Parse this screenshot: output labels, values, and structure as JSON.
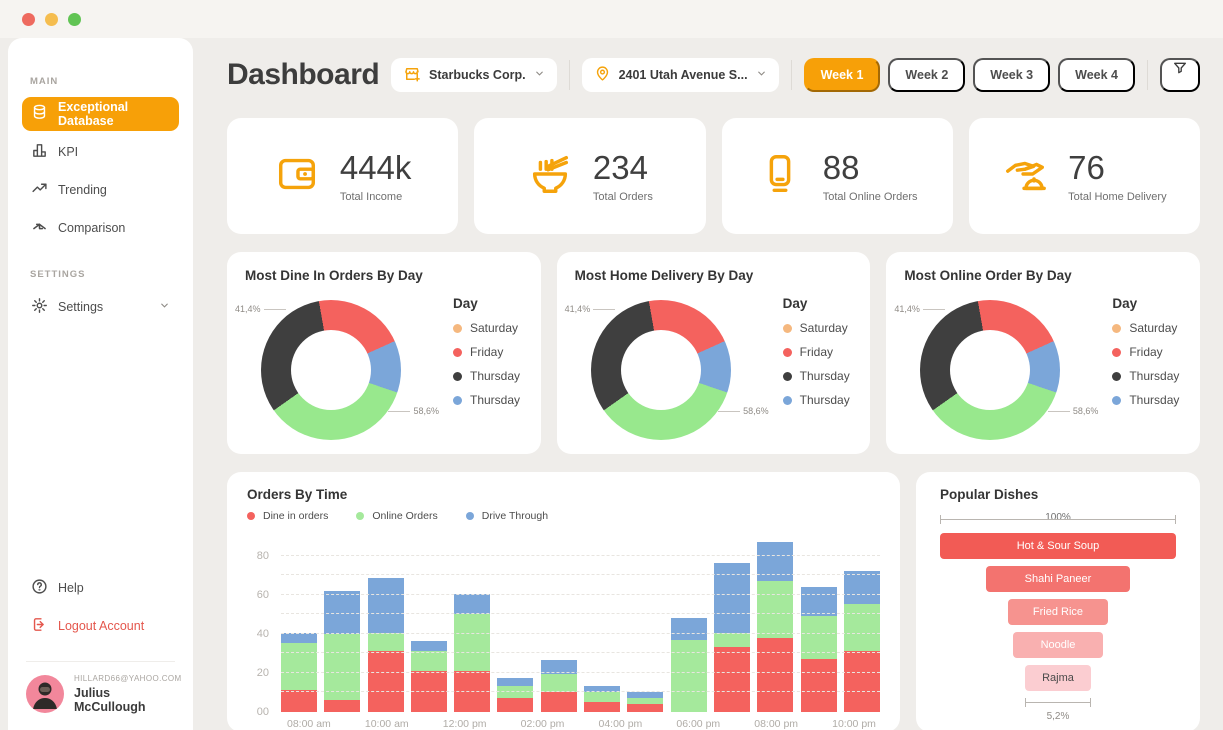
{
  "window": {
    "traffic_lights": [
      {
        "name": "close",
        "color": "#ee6a5f"
      },
      {
        "name": "minimize",
        "color": "#f5bd4f"
      },
      {
        "name": "maximize",
        "color": "#61c454"
      }
    ]
  },
  "sidebar": {
    "main_label": "MAIN",
    "items": [
      {
        "label": "Exceptional Database",
        "icon": "database-icon",
        "active": true
      },
      {
        "label": "KPI",
        "icon": "bar-chart-icon",
        "active": false
      },
      {
        "label": "Trending",
        "icon": "trending-icon",
        "active": false
      },
      {
        "label": "Comparison",
        "icon": "comparison-icon",
        "active": false
      }
    ],
    "settings_label": "SETTINGS",
    "settings_item": {
      "label": "Settings",
      "icon": "gear-icon"
    },
    "help_label": "Help",
    "logout_label": "Logout Account",
    "user": {
      "email": "HILLARD66@YAHOO.COM",
      "name": "Julius McCullough"
    }
  },
  "header": {
    "title": "Dashboard",
    "company_select": {
      "label": "Starbucks Corp.",
      "icon": "store-icon"
    },
    "location_select": {
      "label": "2401 Utah Avenue S...",
      "icon": "location-pin-icon"
    },
    "weeks": [
      "Week 1",
      "Week 2",
      "Week 3",
      "Week 4"
    ],
    "active_week": 0,
    "accent_color": "#f7a008"
  },
  "kpis": [
    {
      "icon": "wallet-icon",
      "value": "444k",
      "label": "Total Income"
    },
    {
      "icon": "noodle-bowl-icon",
      "value": "234",
      "label": "Total Orders"
    },
    {
      "icon": "phone-icon",
      "value": "88",
      "label": "Total Online Orders"
    },
    {
      "icon": "hand-dish-icon",
      "value": "76",
      "label": "Total Home Delivery"
    }
  ],
  "donut_cards": [
    {
      "title": "Most Dine In Orders By Day"
    },
    {
      "title": "Most Home Delivery By Day"
    },
    {
      "title": "Most Online Order By Day"
    }
  ],
  "donut_chart": {
    "type": "pie",
    "labels": {
      "left": "41,4%",
      "right": "58,6%"
    },
    "legend_title": "Day",
    "legend": [
      {
        "label": "Saturday",
        "color": "#f5b87f"
      },
      {
        "label": "Friday",
        "color": "#f4625e"
      },
      {
        "label": "Thursday",
        "color": "#3f3f3f"
      },
      {
        "label": "Thursday",
        "color": "#7ba6d9"
      }
    ],
    "start_angle_deg": -10,
    "slices": [
      {
        "color": "#f4625e",
        "pct": 21
      },
      {
        "color": "#7ba6d9",
        "pct": 12
      },
      {
        "color": "#98e88d",
        "pct": 35
      },
      {
        "color": "#3f3f3f",
        "pct": 32
      }
    ]
  },
  "orders_by_time": {
    "type": "bar",
    "title": "Orders By Time",
    "legend": [
      {
        "label": "Dine in orders",
        "color": "#f4625e"
      },
      {
        "label": "Online Orders",
        "color": "#a5e99c"
      },
      {
        "label": "Drive Through",
        "color": "#7ba6d9"
      }
    ],
    "y_ticks": [
      "00",
      "20",
      "40",
      "60",
      "80"
    ],
    "ylim": [
      0,
      90
    ],
    "x_ticks": [
      "08:00 am",
      "10:00 am",
      "12:00 pm",
      "02:00 pm",
      "04:00 pm",
      "06:00 pm",
      "08:00 pm",
      "10:00 pm"
    ],
    "series_keys": [
      "dine",
      "online",
      "drive"
    ],
    "colors": {
      "dine": "#f4625e",
      "online": "#a5e99c",
      "drive": "#7ba6d9"
    },
    "bars": [
      {
        "dine": 11,
        "online": 24,
        "drive": 5
      },
      {
        "dine": 6,
        "online": 34,
        "drive": 22
      },
      {
        "dine": 31,
        "online": 9,
        "drive": 28
      },
      {
        "dine": 21,
        "online": 10,
        "drive": 5
      },
      {
        "dine": 21,
        "online": 29,
        "drive": 10
      },
      {
        "dine": 7,
        "online": 6,
        "drive": 4
      },
      {
        "dine": 10,
        "online": 9,
        "drive": 7
      },
      {
        "dine": 5,
        "online": 5,
        "drive": 3
      },
      {
        "dine": 4,
        "online": 3,
        "drive": 3
      },
      {
        "dine": 0,
        "online": 37,
        "drive": 11
      },
      {
        "dine": 33,
        "online": 7,
        "drive": 36
      },
      {
        "dine": 38,
        "online": 29,
        "drive": 20
      },
      {
        "dine": 27,
        "online": 22,
        "drive": 15
      },
      {
        "dine": 31,
        "online": 24,
        "drive": 17
      }
    ]
  },
  "popular_dishes": {
    "type": "funnel",
    "title": "Popular Dishes",
    "top_label": "100%",
    "bottom_label": "5,2%",
    "items": [
      {
        "label": "Hot & Sour Soup",
        "width_pct": 100,
        "color": "#f25b55",
        "text_color": "#ffffff"
      },
      {
        "label": "Shahi Paneer",
        "width_pct": 61,
        "color": "#f3736f",
        "text_color": "#ffffff"
      },
      {
        "label": "Fried Rice",
        "width_pct": 42,
        "color": "#f6938f",
        "text_color": "#ffffff"
      },
      {
        "label": "Noodle",
        "width_pct": 38,
        "color": "#f9b0b0",
        "text_color": "#ffffff"
      },
      {
        "label": "Rajma",
        "width_pct": 28,
        "color": "#fbcdd1",
        "text_color": "#4a4a4a"
      }
    ]
  }
}
